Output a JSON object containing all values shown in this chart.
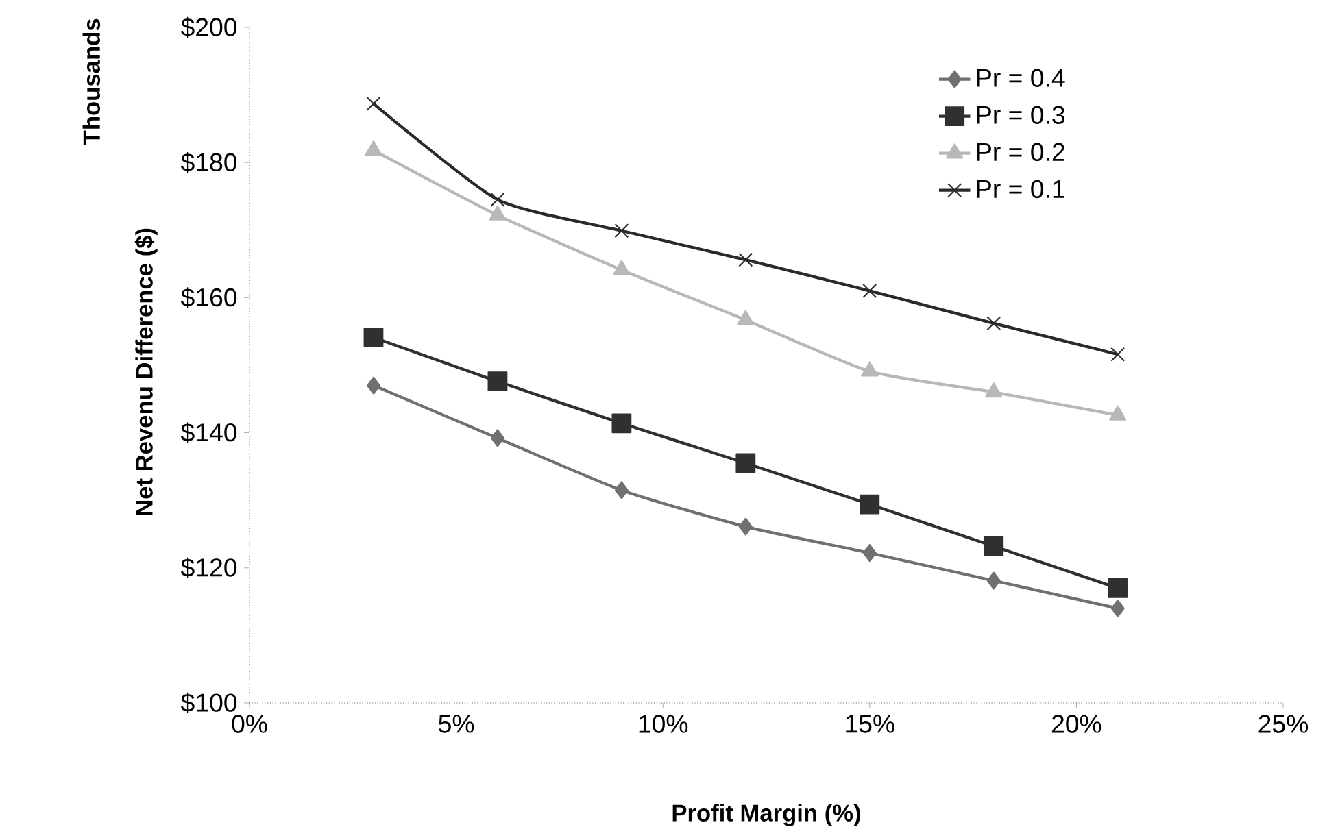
{
  "chart_data": {
    "type": "line",
    "xlabel": "Profit Margin (%)",
    "ylabel": "Net Revenu Difference ($)",
    "annotations": [
      "Thousands"
    ],
    "x": [
      3,
      6,
      9,
      12,
      15,
      18,
      21
    ],
    "series": [
      {
        "name": "Pr = 0.4",
        "color": "#707070",
        "marker": "diamond",
        "values": [
          147.0,
          139.2,
          131.5,
          126.1,
          122.2,
          118.1,
          114.0
        ]
      },
      {
        "name": "Pr = 0.3",
        "color": "#303030",
        "marker": "square",
        "values": [
          154.1,
          147.6,
          141.4,
          135.5,
          129.4,
          123.2,
          117.0
        ]
      },
      {
        "name": "Pr = 0.2",
        "color": "#b8b8b8",
        "marker": "triangle",
        "values": [
          181.8,
          172.2,
          164.1,
          156.7,
          149.1,
          146.0,
          142.6
        ]
      },
      {
        "name": "Pr = 0.1",
        "color": "#2a2a2a",
        "marker": "cross",
        "values": [
          188.7,
          174.5,
          169.9,
          165.6,
          161.0,
          156.2,
          151.6
        ]
      }
    ],
    "xlim": [
      0,
      25
    ],
    "ylim": [
      100,
      200
    ],
    "xticks": [
      {
        "value": 0,
        "label": "0%"
      },
      {
        "value": 5,
        "label": "5%"
      },
      {
        "value": 10,
        "label": "10%"
      },
      {
        "value": 15,
        "label": "15%"
      },
      {
        "value": 20,
        "label": "20%"
      },
      {
        "value": 25,
        "label": "25%"
      }
    ],
    "yticks": [
      {
        "value": 100,
        "label": "$100"
      },
      {
        "value": 120,
        "label": "$120"
      },
      {
        "value": 140,
        "label": "$140"
      },
      {
        "value": 160,
        "label": "$160"
      },
      {
        "value": 180,
        "label": "$180"
      },
      {
        "value": 200,
        "label": "$200"
      }
    ],
    "grid": false,
    "legend": "top right",
    "line_style": "solid"
  }
}
